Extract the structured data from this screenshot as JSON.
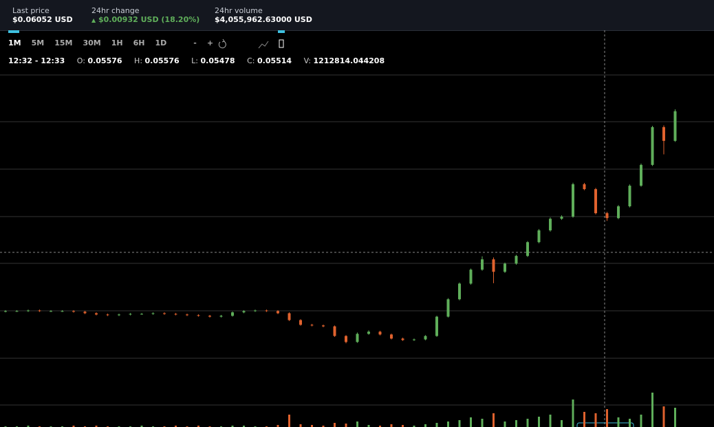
{
  "header": {
    "last_price": {
      "label": "Last price",
      "value": "$0.06052 USD"
    },
    "change": {
      "label": "24hr change",
      "value": "$0.00932 USD (18.20%)"
    },
    "volume": {
      "label": "24hr volume",
      "value": "$4,055,962.63000 USD"
    }
  },
  "toolbar": {
    "intervals": [
      "1M",
      "5M",
      "15M",
      "30M",
      "1H",
      "6H",
      "1D"
    ],
    "zoom_out": "-",
    "zoom_in": "+"
  },
  "ohlc": {
    "time": "12:32 - 12:33",
    "open_label": "O:",
    "open": "0.05576",
    "high_label": "H:",
    "high": "0.05576",
    "low_label": "L:",
    "low": "0.05478",
    "close_label": "C:",
    "close": "0.05514",
    "volume_label": "V:",
    "volume": "1212814.044208"
  },
  "chart_data": {
    "type": "candlestick",
    "up_color": "#5fae5a",
    "down_color": "#e0622e",
    "ylim": [
      0.0458,
      0.0622
    ],
    "vlim": [
      0,
      60
    ],
    "open": [
      0.05118,
      0.0512,
      0.0512,
      0.05123,
      0.0512,
      0.0512,
      0.0512,
      0.05117,
      0.0511,
      0.05104,
      0.05101,
      0.05104,
      0.05107,
      0.05107,
      0.0511,
      0.05107,
      0.05104,
      0.05101,
      0.05098,
      0.05094,
      0.05098,
      0.05114,
      0.0512,
      0.05123,
      0.0512,
      0.0511,
      0.05078,
      0.05056,
      0.05053,
      0.05049,
      0.05004,
      0.04976,
      0.05014,
      0.05024,
      0.05011,
      0.04992,
      0.04985,
      0.04988,
      0.05004,
      0.05094,
      0.05175,
      0.05248,
      0.05313,
      0.05361,
      0.05303,
      0.05341,
      0.05377,
      0.05441,
      0.05496,
      0.0555,
      0.0556,
      0.05711,
      0.05688,
      0.05576,
      0.05553,
      0.05608,
      0.05704,
      0.05801,
      0.05977,
      0.05913
    ],
    "high": [
      0.05124,
      0.05124,
      0.05127,
      0.05127,
      0.05124,
      0.05124,
      0.05124,
      0.05121,
      0.05114,
      0.05108,
      0.05108,
      0.05111,
      0.05111,
      0.05114,
      0.05114,
      0.05111,
      0.05108,
      0.05105,
      0.05102,
      0.05102,
      0.05118,
      0.05124,
      0.05127,
      0.05127,
      0.05124,
      0.05114,
      0.05082,
      0.0506,
      0.05057,
      0.05053,
      0.05008,
      0.0502,
      0.0503,
      0.05028,
      0.05015,
      0.04996,
      0.04992,
      0.05008,
      0.05098,
      0.0518,
      0.05253,
      0.05318,
      0.05375,
      0.0537,
      0.05346,
      0.05382,
      0.05446,
      0.05502,
      0.05556,
      0.05566,
      0.05718,
      0.05717,
      0.05694,
      0.05582,
      0.05614,
      0.0571,
      0.05807,
      0.05983,
      0.05985,
      0.0606
    ],
    "low": [
      0.05114,
      0.05116,
      0.05116,
      0.05116,
      0.05116,
      0.05116,
      0.05113,
      0.05106,
      0.051,
      0.05097,
      0.05097,
      0.051,
      0.05103,
      0.05103,
      0.05103,
      0.051,
      0.05097,
      0.05094,
      0.0509,
      0.0509,
      0.05094,
      0.0511,
      0.05116,
      0.05116,
      0.05106,
      0.05074,
      0.05052,
      0.05049,
      0.05045,
      0.05,
      0.0497,
      0.04972,
      0.0501,
      0.05007,
      0.04988,
      0.04981,
      0.04981,
      0.04984,
      0.05,
      0.0509,
      0.0517,
      0.05243,
      0.05308,
      0.0525,
      0.05298,
      0.05336,
      0.05372,
      0.05436,
      0.0549,
      0.05545,
      0.05555,
      0.05683,
      0.0557,
      0.0554,
      0.05548,
      0.05603,
      0.05699,
      0.05796,
      0.0585,
      0.05908
    ],
    "close": [
      0.0512,
      0.0512,
      0.05123,
      0.0512,
      0.0512,
      0.0512,
      0.05117,
      0.0511,
      0.05104,
      0.05101,
      0.05104,
      0.05107,
      0.05107,
      0.0511,
      0.05107,
      0.05104,
      0.05101,
      0.05098,
      0.05094,
      0.05098,
      0.05114,
      0.0512,
      0.05123,
      0.0512,
      0.0511,
      0.05078,
      0.05056,
      0.05053,
      0.05049,
      0.05004,
      0.04976,
      0.05014,
      0.05024,
      0.05011,
      0.04992,
      0.04985,
      0.04988,
      0.05004,
      0.05094,
      0.05175,
      0.05248,
      0.05313,
      0.05361,
      0.05303,
      0.05341,
      0.05377,
      0.05441,
      0.05496,
      0.0555,
      0.0556,
      0.05711,
      0.05688,
      0.05576,
      0.05553,
      0.05608,
      0.05704,
      0.05801,
      0.05977,
      0.05913,
      0.06051
    ],
    "volume": [
      1,
      1,
      2,
      1,
      1,
      1,
      2,
      1,
      2,
      1,
      1,
      1,
      2,
      1,
      1,
      2,
      1,
      2,
      1,
      1,
      2,
      2,
      1,
      1,
      3,
      18,
      4,
      3,
      2,
      6,
      5,
      8,
      3,
      2,
      4,
      3,
      2,
      4,
      6,
      8,
      10,
      14,
      12,
      20,
      8,
      10,
      12,
      15,
      18,
      10,
      40,
      22,
      20,
      26,
      14,
      12,
      18,
      50,
      30,
      28
    ]
  }
}
